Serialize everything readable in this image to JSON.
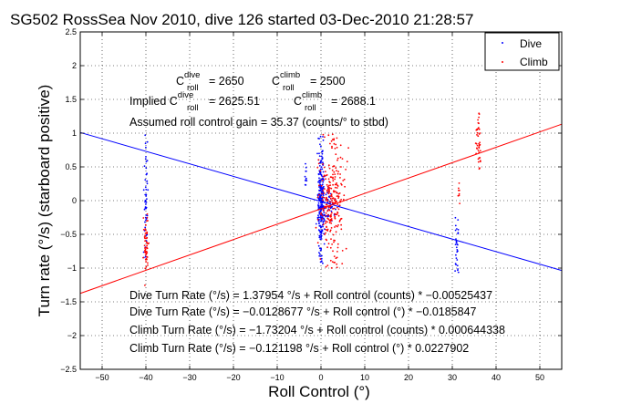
{
  "chart_data": {
    "type": "scatter",
    "title": "SG502 RossSea Nov 2010, dive 126 started 03-Dec-2010 21:28:57",
    "xlabel": "Roll Control (°)",
    "ylabel": "Turn rate (°/s) (starboard positive)",
    "xlim": [
      -55,
      55
    ],
    "ylim": [
      -2.5,
      2.5
    ],
    "xticks": [
      -50,
      -40,
      -30,
      -20,
      -10,
      0,
      10,
      20,
      30,
      40,
      50
    ],
    "yticks": [
      -2.5,
      -2,
      -1.5,
      -1,
      -0.5,
      0,
      0.5,
      1,
      1.5,
      2,
      2.5
    ],
    "xtick_labels": [
      "−50",
      "−40",
      "−30",
      "−20",
      "−10",
      "0",
      "10",
      "20",
      "30",
      "40",
      "50"
    ],
    "ytick_labels": [
      "−2.5",
      "−2",
      "−1.5",
      "−1",
      "−0.5",
      "0",
      "0.5",
      "1",
      "1.5",
      "2",
      "2.5"
    ],
    "grid": true,
    "legend": {
      "placement": "top-right",
      "entries": [
        {
          "label": "Dive",
          "color": "#0000ff"
        },
        {
          "label": "Climb",
          "color": "#ff0000"
        }
      ]
    },
    "series": [
      {
        "name": "Dive",
        "color": "#0000ff",
        "fit_line": {
          "slope": -0.0185847,
          "intercept": -0.0128677
        },
        "clusters": [
          {
            "x": -40,
            "x_spread": 0.4,
            "y": [
              -0.9,
              1.0
            ],
            "n": 50
          },
          {
            "x": 0,
            "x_spread": 0.7,
            "y": [
              -0.95,
              0.95
            ],
            "n": 260
          },
          {
            "x": -3.5,
            "x_spread": 0.3,
            "y": [
              0.2,
              0.65
            ],
            "n": 12
          },
          {
            "x": 31,
            "x_spread": 0.4,
            "y": [
              -1.1,
              -0.2
            ],
            "n": 30
          },
          {
            "x": 2,
            "x_spread": 1.5,
            "y": [
              -0.3,
              0.2
            ],
            "n": 40
          }
        ]
      },
      {
        "name": "Climb",
        "color": "#ff0000",
        "fit_line": {
          "slope": 0.0227902,
          "intercept": -0.121198
        },
        "clusters": [
          {
            "x": -40,
            "x_spread": 0.4,
            "y": [
              -1.3,
              -0.15
            ],
            "n": 50
          },
          {
            "x": 2.5,
            "x_spread": 2.5,
            "y": [
              -1.0,
              1.0
            ],
            "n": 260
          },
          {
            "x": 36,
            "x_spread": 0.5,
            "y": [
              0.45,
              1.3
            ],
            "n": 40
          },
          {
            "x": 31.5,
            "x_spread": 0.3,
            "y": [
              -0.1,
              0.35
            ],
            "n": 8
          }
        ]
      }
    ],
    "annotations": {
      "cdive_prefix": "C",
      "cdive_sup": "dive",
      "cdive_sub": "roll",
      "cdive_value": "= 2650",
      "cclimb_prefix": "C",
      "cclimb_sup": "climb",
      "cclimb_sub": "roll",
      "cclimb_value": "= 2500",
      "implied_prefix": "Implied C",
      "implied_dive_sup": "dive",
      "implied_dive_sub": "roll",
      "implied_dive_value": "= 2625.51",
      "implied_climb_prefix": "C",
      "implied_climb_sup": "climb",
      "implied_climb_sub": "roll",
      "implied_climb_value": "= 2688.1",
      "gain": "Assumed roll control gain = 35.37 (counts/° to stbd)",
      "fit1": "Dive Turn Rate (°/s) = 1.37954 °/s + Roll control (counts) * −0.00525437",
      "fit2": "Dive Turn Rate (°/s) = −0.0128677 °/s + Roll control (°) * −0.0185847",
      "fit3": "Climb Turn Rate (°/s) = −1.73204 °/s + Roll control (counts) * 0.000644338",
      "fit4": "Climb Turn Rate (°/s) = −0.121198 °/s + Roll control (°) * 0.0227902"
    }
  }
}
